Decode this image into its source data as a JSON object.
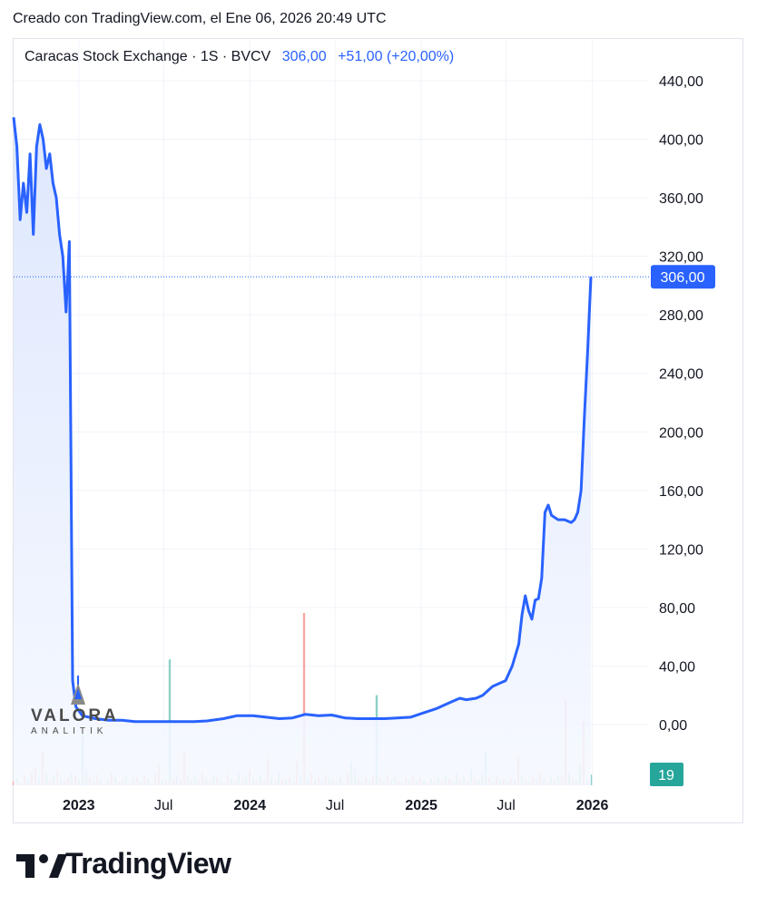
{
  "header": {
    "created_text": "Creado con TradingView.com, el Ene 06, 2026 20:49 UTC"
  },
  "legend": {
    "symbol": "Caracas Stock Exchange · 1S · BVCV",
    "last": "306,00",
    "change": "+51,00 (+20,00%)"
  },
  "watermark": {
    "title": "VALORA",
    "subtitle": "ANALITIK"
  },
  "footer": {
    "brand": "TradingView"
  },
  "colors": {
    "line": "#2962ff",
    "area_top": "#dfe7fd",
    "volume_up": "#8fd1c6",
    "volume_down": "#f4a7a7",
    "volume_badge": "#26a69a",
    "price_badge": "#2962ff",
    "grid": "#f0f3fa"
  },
  "chart_data": {
    "type": "area",
    "ylim": [
      0,
      440
    ],
    "y_ticks": [
      "440,00",
      "400,00",
      "360,00",
      "320,00",
      "280,00",
      "240,00",
      "200,00",
      "160,00",
      "120,00",
      "80,00",
      "40,00",
      "0,00"
    ],
    "x_ticks": [
      {
        "label": "2023",
        "date": "2023-01-01"
      },
      {
        "label": "Jul",
        "date": "2023-07-01"
      },
      {
        "label": "2024",
        "date": "2024-01-01"
      },
      {
        "label": "Jul",
        "date": "2024-07-01"
      },
      {
        "label": "2025",
        "date": "2025-01-01"
      },
      {
        "label": "Jul",
        "date": "2025-07-01"
      },
      {
        "label": "2026",
        "date": "2026-01-01"
      }
    ],
    "last_price_label": "306,00",
    "last_price": 306,
    "volume_last_label": "19",
    "series": [
      {
        "values": [
          [
            "2022-08-15",
            415
          ],
          [
            "2022-08-22",
            395
          ],
          [
            "2022-08-29",
            345
          ],
          [
            "2022-09-05",
            370
          ],
          [
            "2022-09-12",
            350
          ],
          [
            "2022-09-19",
            390
          ],
          [
            "2022-09-26",
            335
          ],
          [
            "2022-10-03",
            395
          ],
          [
            "2022-10-10",
            410
          ],
          [
            "2022-10-17",
            400
          ],
          [
            "2022-10-24",
            380
          ],
          [
            "2022-10-31",
            390
          ],
          [
            "2022-11-07",
            370
          ],
          [
            "2022-11-14",
            360
          ],
          [
            "2022-11-21",
            335
          ],
          [
            "2022-11-28",
            320
          ],
          [
            "2022-12-05",
            282
          ],
          [
            "2022-12-12",
            330
          ],
          [
            "2022-12-19",
            30
          ],
          [
            "2022-12-26",
            12
          ],
          [
            "2023-01-09",
            6
          ],
          [
            "2023-02-06",
            4
          ],
          [
            "2023-03-06",
            3
          ],
          [
            "2023-04-03",
            3
          ],
          [
            "2023-05-01",
            2
          ],
          [
            "2023-06-05",
            2
          ],
          [
            "2023-07-03",
            2
          ],
          [
            "2023-08-07",
            2
          ],
          [
            "2023-09-04",
            2
          ],
          [
            "2023-10-02",
            2.5
          ],
          [
            "2023-11-06",
            4
          ],
          [
            "2023-12-04",
            6
          ],
          [
            "2024-01-08",
            6
          ],
          [
            "2024-02-05",
            5
          ],
          [
            "2024-03-04",
            4
          ],
          [
            "2024-04-01",
            4.5
          ],
          [
            "2024-04-29",
            7
          ],
          [
            "2024-05-27",
            6
          ],
          [
            "2024-06-24",
            6.5
          ],
          [
            "2024-07-22",
            4.5
          ],
          [
            "2024-08-19",
            4
          ],
          [
            "2024-09-16",
            4
          ],
          [
            "2024-10-14",
            4
          ],
          [
            "2024-11-11",
            4.5
          ],
          [
            "2024-12-09",
            5
          ],
          [
            "2025-01-06",
            8
          ],
          [
            "2025-02-03",
            11
          ],
          [
            "2025-03-03",
            15
          ],
          [
            "2025-03-24",
            18
          ],
          [
            "2025-04-07",
            17
          ],
          [
            "2025-04-28",
            18
          ],
          [
            "2025-05-12",
            20
          ],
          [
            "2025-05-26",
            24
          ],
          [
            "2025-06-02",
            26
          ],
          [
            "2025-06-16",
            28
          ],
          [
            "2025-06-30",
            30
          ],
          [
            "2025-07-14",
            40
          ],
          [
            "2025-07-28",
            55
          ],
          [
            "2025-08-04",
            75
          ],
          [
            "2025-08-11",
            88
          ],
          [
            "2025-08-18",
            78
          ],
          [
            "2025-08-25",
            72
          ],
          [
            "2025-09-01",
            85
          ],
          [
            "2025-09-08",
            86
          ],
          [
            "2025-09-15",
            100
          ],
          [
            "2025-09-22",
            145
          ],
          [
            "2025-09-29",
            150
          ],
          [
            "2025-10-06",
            143
          ],
          [
            "2025-10-20",
            140
          ],
          [
            "2025-11-03",
            140
          ],
          [
            "2025-11-17",
            138
          ],
          [
            "2025-11-24",
            140
          ],
          [
            "2025-12-01",
            145
          ],
          [
            "2025-12-08",
            160
          ],
          [
            "2025-12-15",
            210
          ],
          [
            "2025-12-22",
            255
          ],
          [
            "2025-12-29",
            306
          ]
        ]
      }
    ],
    "volume": [
      [
        3,
        "d"
      ],
      [
        5,
        "u"
      ],
      [
        2,
        "d"
      ],
      [
        7,
        "d"
      ],
      [
        4,
        "u"
      ],
      [
        10,
        "d"
      ],
      [
        13,
        "d"
      ],
      [
        6,
        "u"
      ],
      [
        25,
        "d"
      ],
      [
        9,
        "u"
      ],
      [
        4,
        "d"
      ],
      [
        8,
        "u"
      ],
      [
        11,
        "d"
      ],
      [
        5,
        "u"
      ],
      [
        3,
        "d"
      ],
      [
        6,
        "d"
      ],
      [
        9,
        "u"
      ],
      [
        7,
        "d"
      ],
      [
        4,
        "u"
      ],
      [
        40,
        "u"
      ],
      [
        12,
        "u"
      ],
      [
        6,
        "d"
      ],
      [
        3,
        "u"
      ],
      [
        8,
        "d"
      ],
      [
        5,
        "u"
      ],
      [
        2,
        "d"
      ],
      [
        4,
        "u"
      ],
      [
        9,
        "d"
      ],
      [
        6,
        "u"
      ],
      [
        3,
        "d"
      ],
      [
        5,
        "d"
      ],
      [
        7,
        "u"
      ],
      [
        2,
        "d"
      ],
      [
        4,
        "u"
      ],
      [
        6,
        "d"
      ],
      [
        3,
        "u"
      ],
      [
        8,
        "d"
      ],
      [
        5,
        "u"
      ],
      [
        2,
        "u"
      ],
      [
        9,
        "d"
      ],
      [
        15,
        "d"
      ],
      [
        4,
        "u"
      ],
      [
        3,
        "d"
      ],
      [
        95,
        "u"
      ],
      [
        5,
        "d"
      ],
      [
        6,
        "u"
      ],
      [
        4,
        "d"
      ],
      [
        25,
        "d"
      ],
      [
        7,
        "u"
      ],
      [
        3,
        "d"
      ],
      [
        6,
        "u"
      ],
      [
        4,
        "d"
      ],
      [
        9,
        "d"
      ],
      [
        5,
        "u"
      ],
      [
        3,
        "d"
      ],
      [
        7,
        "u"
      ],
      [
        6,
        "d"
      ],
      [
        4,
        "u"
      ],
      [
        2,
        "d"
      ],
      [
        8,
        "d"
      ],
      [
        5,
        "u"
      ],
      [
        3,
        "d"
      ],
      [
        9,
        "u"
      ],
      [
        4,
        "d"
      ],
      [
        6,
        "u"
      ],
      [
        12,
        "d"
      ],
      [
        5,
        "u"
      ],
      [
        3,
        "d"
      ],
      [
        7,
        "u"
      ],
      [
        4,
        "d"
      ],
      [
        20,
        "d"
      ],
      [
        6,
        "u"
      ],
      [
        3,
        "d"
      ],
      [
        10,
        "u"
      ],
      [
        5,
        "d"
      ],
      [
        4,
        "u"
      ],
      [
        6,
        "d"
      ],
      [
        3,
        "u"
      ],
      [
        18,
        "d"
      ],
      [
        7,
        "u"
      ],
      [
        130,
        "d"
      ],
      [
        5,
        "u"
      ],
      [
        9,
        "d"
      ],
      [
        4,
        "u"
      ],
      [
        6,
        "d"
      ],
      [
        3,
        "u"
      ],
      [
        8,
        "d"
      ],
      [
        5,
        "u"
      ],
      [
        4,
        "d"
      ],
      [
        3,
        "u"
      ],
      [
        6,
        "u"
      ],
      [
        2,
        "d"
      ],
      [
        9,
        "d"
      ],
      [
        18,
        "u"
      ],
      [
        12,
        "u"
      ],
      [
        5,
        "d"
      ],
      [
        3,
        "u"
      ],
      [
        6,
        "d"
      ],
      [
        4,
        "u"
      ],
      [
        7,
        "d"
      ],
      [
        68,
        "u"
      ],
      [
        5,
        "d"
      ],
      [
        3,
        "u"
      ],
      [
        8,
        "d"
      ],
      [
        4,
        "u"
      ],
      [
        6,
        "u"
      ],
      [
        3,
        "d"
      ],
      [
        2,
        "u"
      ],
      [
        5,
        "d"
      ],
      [
        4,
        "u"
      ],
      [
        7,
        "d"
      ],
      [
        3,
        "u"
      ],
      [
        6,
        "d"
      ],
      [
        4,
        "u"
      ],
      [
        2,
        "d"
      ],
      [
        5,
        "u"
      ],
      [
        3,
        "d"
      ],
      [
        6,
        "u"
      ],
      [
        4,
        "d"
      ],
      [
        7,
        "u"
      ],
      [
        5,
        "d"
      ],
      [
        3,
        "u"
      ],
      [
        9,
        "u"
      ],
      [
        4,
        "d"
      ],
      [
        6,
        "u"
      ],
      [
        3,
        "d"
      ],
      [
        12,
        "u"
      ],
      [
        5,
        "d"
      ],
      [
        4,
        "u"
      ],
      [
        8,
        "u"
      ],
      [
        25,
        "u"
      ],
      [
        6,
        "d"
      ],
      [
        3,
        "u"
      ],
      [
        7,
        "d"
      ],
      [
        4,
        "u"
      ],
      [
        5,
        "d"
      ],
      [
        3,
        "u"
      ],
      [
        6,
        "d"
      ],
      [
        4,
        "u"
      ],
      [
        22,
        "d"
      ],
      [
        8,
        "u"
      ],
      [
        5,
        "d"
      ],
      [
        3,
        "u"
      ],
      [
        6,
        "d"
      ],
      [
        4,
        "u"
      ],
      [
        9,
        "d"
      ],
      [
        5,
        "u"
      ],
      [
        3,
        "d"
      ],
      [
        6,
        "u"
      ],
      [
        4,
        "d"
      ],
      [
        8,
        "u"
      ],
      [
        6,
        "d"
      ],
      [
        65,
        "d"
      ],
      [
        9,
        "u"
      ],
      [
        5,
        "d"
      ],
      [
        3,
        "u"
      ],
      [
        15,
        "u"
      ],
      [
        48,
        "d"
      ],
      [
        4,
        "u"
      ],
      [
        8,
        "u"
      ]
    ]
  }
}
